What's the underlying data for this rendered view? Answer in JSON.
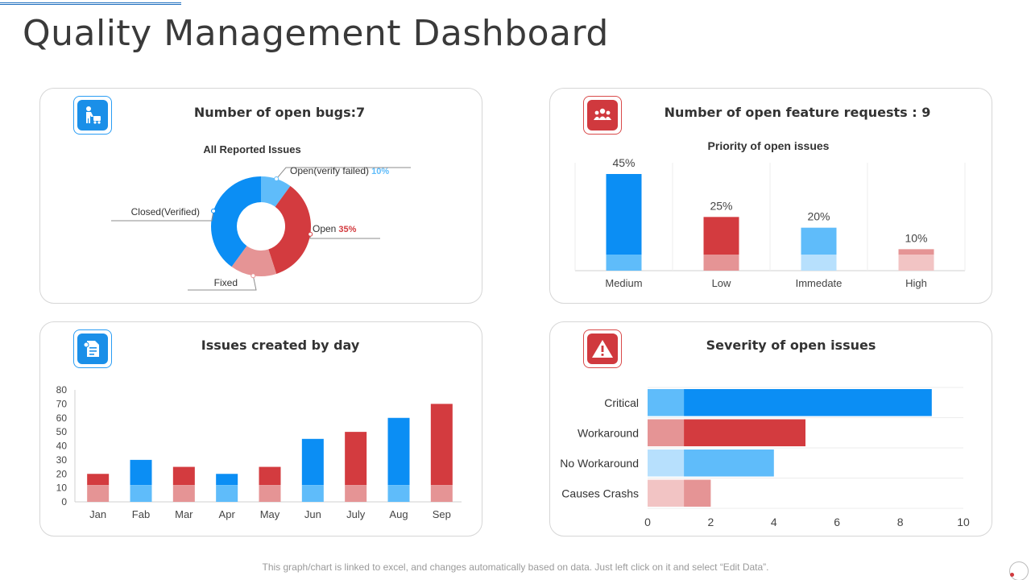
{
  "page": {
    "title": "Quality Management Dashboard",
    "footer": "This graph/chart is linked to excel, and changes automatically based on data. Just left click on it and select “Edit Data”."
  },
  "bugs_card": {
    "title": "Number of open bugs:7",
    "icon": "worker-icon"
  },
  "features_card": {
    "title": "Number of open feature requests  : 9",
    "icon": "team-icon"
  },
  "day_card": {
    "title": "Issues created by day",
    "icon": "document-settings-icon"
  },
  "severity_card": {
    "title": "Severity of open issues",
    "icon": "warning-icon"
  },
  "colors": {
    "blue": "#0b8ef4",
    "light_blue": "#5fbcfa",
    "pale_blue": "#b7e0fd",
    "red": "#d33b3f",
    "pink": "#e59495",
    "pale_pink": "#f2c4c4"
  },
  "chart_data": [
    {
      "id": "bugs",
      "type": "pie",
      "title": "All Reported Issues",
      "slices": [
        {
          "label": "Open(verify  failed)",
          "pct_label": "10%",
          "value": 10,
          "color": "#5fbcfa",
          "pct_color": "#5fbcfa"
        },
        {
          "label": "Open",
          "pct_label": "35%",
          "value": 35,
          "color": "#d33b3f",
          "pct_color": "#d33b3f"
        },
        {
          "label": "Fixed",
          "pct_label": "",
          "value": 15,
          "color": "#e59495",
          "pct_color": "#333333"
        },
        {
          "label": "Closed(Verified)",
          "pct_label": "",
          "value": 40,
          "color": "#0b8ef4",
          "pct_color": "#333333"
        }
      ]
    },
    {
      "id": "priority",
      "type": "bar",
      "title": "Priority of open issues",
      "categories": [
        "Medium",
        "Low",
        "Immedate",
        "High"
      ],
      "values": [
        45,
        25,
        20,
        10
      ],
      "value_labels": [
        "45%",
        "25%",
        "20%",
        "10%"
      ],
      "base_value": 7,
      "colors": [
        "#0b8ef4",
        "#d33b3f",
        "#5fbcfa",
        "#e59495"
      ],
      "base_colors": [
        "#5fbcfa",
        "#e59495",
        "#b7e0fd",
        "#f2c4c4"
      ],
      "ylim": [
        0,
        50
      ]
    },
    {
      "id": "by_day",
      "type": "bar",
      "title": "Issues created by day",
      "categories": [
        "Jan",
        "Fab",
        "Mar",
        "Apr",
        "May",
        "Jun",
        "July",
        "Aug",
        "Sep"
      ],
      "values": [
        20,
        30,
        25,
        20,
        25,
        45,
        50,
        60,
        70
      ],
      "base_value": 12,
      "colors": [
        "#d33b3f",
        "#0b8ef4",
        "#d33b3f",
        "#0b8ef4",
        "#d33b3f",
        "#0b8ef4",
        "#d33b3f",
        "#0b8ef4",
        "#d33b3f"
      ],
      "base_colors": [
        "#e59495",
        "#5fbcfa",
        "#e59495",
        "#5fbcfa",
        "#e59495",
        "#5fbcfa",
        "#e59495",
        "#5fbcfa",
        "#e59495"
      ],
      "yticks": [
        0,
        10,
        20,
        30,
        40,
        50,
        60,
        70,
        80
      ],
      "ylim": [
        0,
        80
      ]
    },
    {
      "id": "severity",
      "type": "bar",
      "orientation": "horizontal",
      "title": "Severity of open issues",
      "categories": [
        "Critical",
        "Workaround",
        "No Workaround",
        "Causes Crashs"
      ],
      "values": [
        9,
        5,
        4,
        2
      ],
      "base_value": 1.15,
      "colors": [
        "#0b8ef4",
        "#d33b3f",
        "#5fbcfa",
        "#e59495"
      ],
      "base_colors": [
        "#5fbcfa",
        "#e59495",
        "#b7e0fd",
        "#f2c4c4"
      ],
      "xticks": [
        0,
        2,
        4,
        6,
        8,
        10
      ],
      "xlim": [
        0,
        10
      ]
    }
  ]
}
